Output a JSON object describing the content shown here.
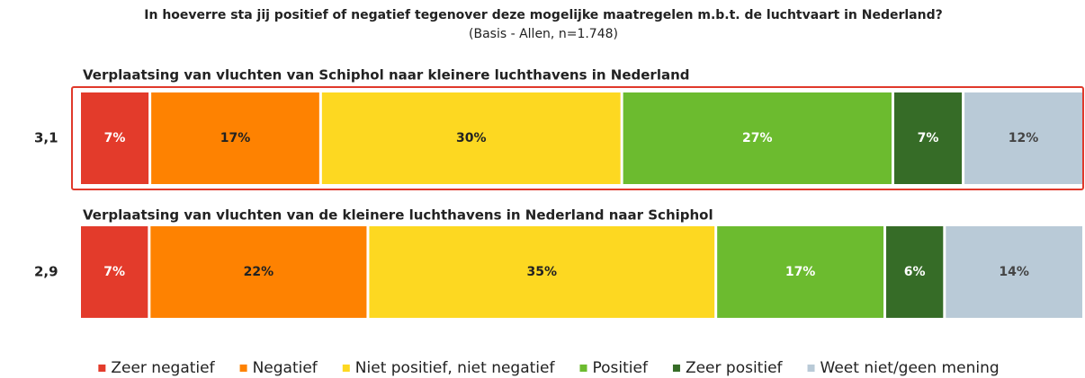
{
  "chart_data": {
    "type": "stacked_bar_100",
    "title": "In hoeverre sta jij positief of negatief tegenover deze mogelijke maatregelen m.b.t. de luchtvaart in Nederland?",
    "subtitle": "(Basis - Allen, n=1.748)",
    "categories": [
      "Verplaatsing van vluchten van Schiphol naar kleinere luchthavens in Nederland",
      "Verplaatsing van vluchten van de kleinere luchthavens in Nederland naar Schiphol"
    ],
    "scores": [
      "3,1",
      "2,9"
    ],
    "series": [
      {
        "name": "Zeer negatief",
        "color": "#e33b2b",
        "label_color": "#ffffff",
        "values": [
          7,
          7
        ],
        "value_labels": [
          "7%",
          "7%"
        ]
      },
      {
        "name": "Negatief",
        "color": "#fe8201",
        "label_color": "#222222",
        "values": [
          17,
          22
        ],
        "value_labels": [
          "17%",
          "22%"
        ]
      },
      {
        "name": "Niet positief, niet negatief",
        "color": "#fdd821",
        "label_color": "#222222",
        "values": [
          30,
          35
        ],
        "value_labels": [
          "30%",
          "35%"
        ]
      },
      {
        "name": "Positief",
        "color": "#6cbb2f",
        "label_color": "#ffffff",
        "values": [
          27,
          17
        ],
        "value_labels": [
          "27%",
          "17%"
        ]
      },
      {
        "name": "Zeer positief",
        "color": "#366c27",
        "label_color": "#ffffff",
        "values": [
          7,
          6
        ],
        "value_labels": [
          "7%",
          "6%"
        ]
      },
      {
        "name": "Weet niet/geen mening",
        "color": "#b9cad7",
        "label_color": "#444444",
        "values": [
          12,
          14
        ],
        "value_labels": [
          "12%",
          "14%"
        ]
      }
    ],
    "highlight": 0
  }
}
